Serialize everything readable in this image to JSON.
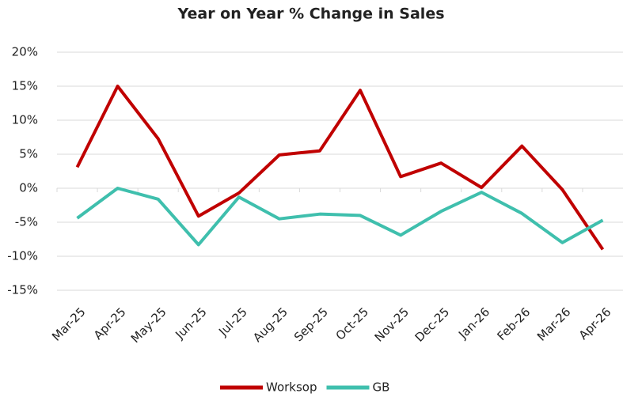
{
  "chart_data": {
    "type": "line",
    "title": "Year on Year % Change in Sales",
    "categories": [
      "Mar-25",
      "Apr-25",
      "May-25",
      "Jun-25",
      "Jul-25",
      "Aug-25",
      "Sep-25",
      "Oct-25",
      "Nov-25",
      "Dec-25",
      "Jan-26",
      "Feb-26",
      "Mar-26",
      "Apr-26"
    ],
    "series": [
      {
        "name": "Worksop",
        "color": "#c00000",
        "values": [
          3.1,
          15.0,
          7.3,
          -4.1,
          -0.7,
          4.9,
          5.5,
          14.4,
          1.7,
          3.7,
          0.1,
          6.2,
          -0.2,
          -9.0
        ]
      },
      {
        "name": "GB",
        "color": "#3fbfad",
        "values": [
          -4.4,
          0.0,
          -1.6,
          -8.3,
          -1.3,
          -4.5,
          -3.8,
          -4.0,
          -6.9,
          -3.4,
          -0.6,
          -3.7,
          -8.0,
          -4.7
        ]
      }
    ],
    "ylim": [
      -15,
      20
    ],
    "yticks": [
      {
        "value": -15,
        "label": "-15%"
      },
      {
        "value": -10,
        "label": "-10%"
      },
      {
        "value": -5,
        "label": "-5%"
      },
      {
        "value": 0,
        "label": "0%"
      },
      {
        "value": 5,
        "label": "5%"
      },
      {
        "value": 10,
        "label": "10%"
      },
      {
        "value": 15,
        "label": "15%"
      },
      {
        "value": 20,
        "label": "20%"
      }
    ],
    "grid": true,
    "legend": "bottom"
  }
}
